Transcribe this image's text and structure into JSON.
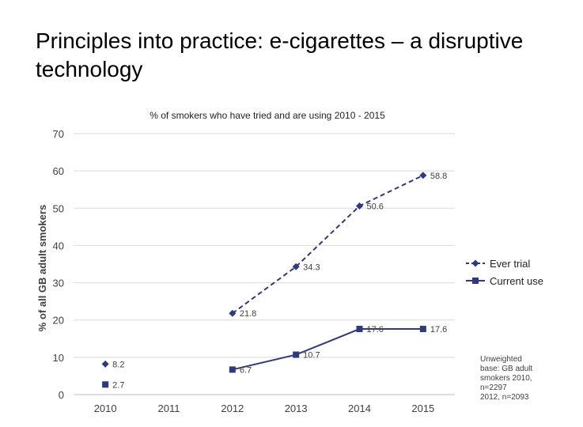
{
  "slide": {
    "title": "Principles into practice: e-cigarettes – a disruptive technology"
  },
  "chart_data": {
    "type": "line",
    "title": "% of smokers who have tried and are using 2010 - 2015",
    "xlabel": "",
    "ylabel": "% of all GB adult smokers",
    "categories": [
      "2010",
      "2011",
      "2012",
      "2013",
      "2014",
      "2015"
    ],
    "ylim": [
      0,
      70
    ],
    "yticks": [
      0,
      10,
      20,
      30,
      40,
      50,
      60,
      70
    ],
    "grid": true,
    "legend_position": "right",
    "series": [
      {
        "name": "Ever trial",
        "values": [
          8.2,
          null,
          21.8,
          34.3,
          50.6,
          58.8
        ],
        "labels": [
          "8.2",
          "",
          "21.8",
          "34.3",
          "50.6",
          "58.8"
        ],
        "marker": "diamond",
        "line_style": "dashed",
        "color": "#2e3a7c"
      },
      {
        "name": "Current use",
        "values": [
          2.7,
          null,
          6.7,
          10.7,
          17.6,
          17.6
        ],
        "labels": [
          "2.7",
          "",
          "6.7",
          "10.7",
          "17.6",
          "17.6"
        ],
        "marker": "square",
        "line_style": "solid",
        "color": "#2e3a7c"
      }
    ],
    "note_lines": [
      "Unweighted",
      "base: GB adult",
      "smokers 2010,",
      "n=2297",
      "2012, n=2093"
    ]
  }
}
